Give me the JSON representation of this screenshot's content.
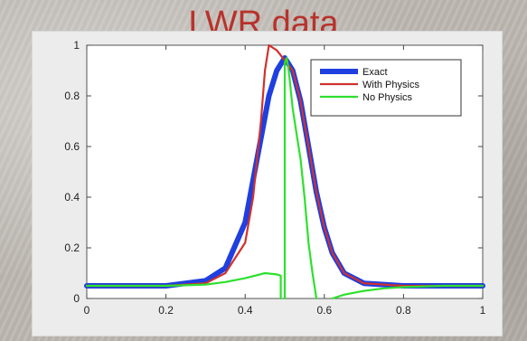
{
  "slide": {
    "title": "LWR data"
  },
  "chart_data": {
    "type": "line",
    "title": "",
    "xlabel": "",
    "ylabel": "",
    "xlim": [
      0,
      1
    ],
    "ylim": [
      0,
      1
    ],
    "grid": false,
    "legend_position": "top-right",
    "x_ticks": [
      "0",
      "0.2",
      "0.4",
      "0.6",
      "0.8",
      "1"
    ],
    "y_ticks": [
      "0",
      "0.2",
      "0.4",
      "0.6",
      "0.8",
      "1"
    ],
    "series": [
      {
        "name": "Exact",
        "color": "#1f3fe0",
        "x": [
          0,
          0.2,
          0.3,
          0.35,
          0.4,
          0.43,
          0.46,
          0.48,
          0.5,
          0.52,
          0.54,
          0.56,
          0.58,
          0.6,
          0.62,
          0.65,
          0.7,
          0.8,
          1.0
        ],
        "y": [
          0.05,
          0.05,
          0.07,
          0.12,
          0.3,
          0.55,
          0.8,
          0.9,
          0.95,
          0.9,
          0.78,
          0.6,
          0.42,
          0.28,
          0.18,
          0.1,
          0.06,
          0.05,
          0.05
        ]
      },
      {
        "name": "With Physics",
        "color": "#d0312d",
        "x": [
          0,
          0.2,
          0.3,
          0.35,
          0.4,
          0.42,
          0.44,
          0.45,
          0.46,
          0.48,
          0.5,
          0.52,
          0.54,
          0.56,
          0.58,
          0.6,
          0.62,
          0.65,
          0.7,
          0.8,
          1.0
        ],
        "y": [
          0.05,
          0.05,
          0.06,
          0.1,
          0.22,
          0.4,
          0.7,
          0.9,
          1.0,
          0.98,
          0.94,
          0.9,
          0.78,
          0.6,
          0.42,
          0.28,
          0.18,
          0.1,
          0.06,
          0.05,
          0.05
        ]
      },
      {
        "name": "No Physics",
        "color": "#2ee02e",
        "segments": [
          {
            "x": [
              0,
              0.1,
              0.2,
              0.3,
              0.35,
              0.4,
              0.45,
              0.48,
              0.49,
              0.49
            ],
            "y": [
              0.05,
              0.05,
              0.05,
              0.055,
              0.065,
              0.08,
              0.1,
              0.095,
              0.09,
              0.0
            ]
          },
          {
            "x": [
              0.5,
              0.5,
              0.505,
              0.51,
              0.52,
              0.53,
              0.54,
              0.55,
              0.56,
              0.57,
              0.575,
              0.58
            ],
            "y": [
              0.0,
              0.93,
              0.95,
              0.9,
              0.75,
              0.65,
              0.55,
              0.4,
              0.22,
              0.1,
              0.05,
              0.0
            ]
          },
          {
            "x": [
              0.62,
              0.65,
              0.7,
              0.75,
              0.8,
              0.9,
              1.0
            ],
            "y": [
              0.0,
              0.015,
              0.03,
              0.04,
              0.045,
              0.05,
              0.05
            ]
          }
        ]
      }
    ]
  }
}
